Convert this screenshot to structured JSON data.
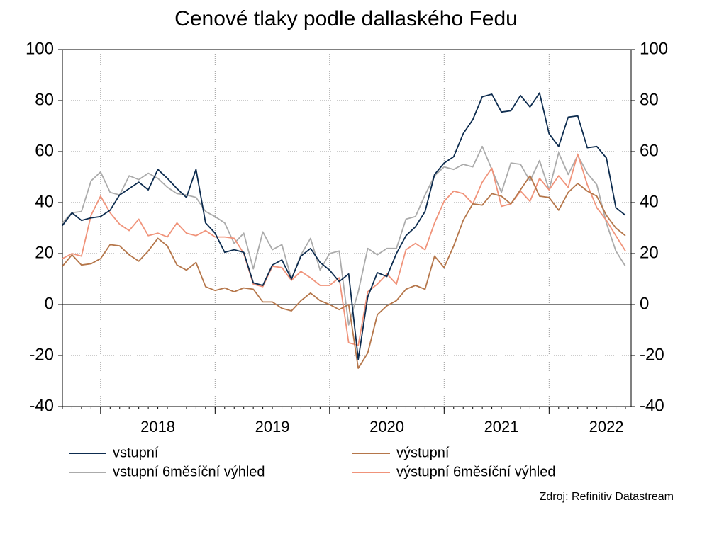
{
  "chart_data": {
    "type": "line",
    "title": "Cenové tlaky podle dallaského Fedu",
    "source": "Zdroj: Refinitiv Datastream",
    "categories": [
      null,
      null,
      null,
      null,
      null,
      null,
      null,
      null,
      null,
      null,
      "2018",
      null,
      null,
      null,
      null,
      null,
      null,
      null,
      null,
      null,
      null,
      null,
      "2019",
      null,
      null,
      null,
      null,
      null,
      null,
      null,
      null,
      null,
      null,
      null,
      "2020",
      null,
      null,
      null,
      null,
      null,
      null,
      null,
      null,
      null,
      null,
      null,
      "2021",
      null,
      null,
      null,
      null,
      null,
      null,
      null,
      null,
      null,
      null,
      "2022",
      null,
      null
    ],
    "ylim": [
      -40,
      100
    ],
    "yticks": [
      -40,
      -20,
      0,
      20,
      40,
      60,
      80,
      100
    ],
    "grid": true,
    "series": [
      {
        "name": "vstupní",
        "color": "#0d2c4f",
        "values": [
          31,
          36,
          33,
          34,
          34.5,
          37,
          43,
          45.5,
          48,
          45,
          53,
          49.5,
          45.5,
          42,
          53,
          32,
          28,
          20.5,
          21.5,
          20.5,
          8.5,
          7.5,
          15.5,
          17.5,
          10,
          19,
          22,
          16.5,
          13.5,
          9,
          12,
          -21.5,
          3,
          12.5,
          11,
          20,
          27,
          30.5,
          36.5,
          51,
          55.5,
          58,
          67,
          72.5,
          81.5,
          82.5,
          75.5,
          76,
          82,
          77.5,
          83,
          67,
          62,
          73.5,
          74,
          61.5,
          62,
          57.5,
          38,
          35
        ]
      },
      {
        "name": "výstupní",
        "color": "#b5764a",
        "values": [
          15,
          19.5,
          15.5,
          16,
          18,
          23.5,
          23,
          19.5,
          17,
          21,
          26,
          23,
          15.5,
          13.5,
          16.5,
          7,
          5.5,
          6.5,
          5,
          6.5,
          6,
          1,
          1,
          -1.5,
          -2.5,
          1.5,
          4.5,
          1.5,
          0,
          -2,
          0,
          -25,
          -19,
          -4,
          -0.5,
          1.5,
          6,
          7.5,
          6,
          19,
          14.5,
          23,
          33,
          39.5,
          39,
          43.5,
          42.5,
          39.5,
          45,
          50.5,
          42.5,
          42,
          37,
          44,
          47.5,
          44.5,
          42.5,
          35,
          30,
          27
        ]
      },
      {
        "name": "vstupní 6měsíční výhled",
        "color": "#ababab",
        "values": [
          32,
          36,
          36.5,
          48.5,
          52,
          44,
          43,
          50.5,
          49,
          51.5,
          49.5,
          46,
          43.5,
          43,
          42,
          36.5,
          34.5,
          32,
          24,
          28,
          14,
          28.5,
          21.5,
          23.5,
          10,
          19.5,
          26,
          13.5,
          20,
          21,
          -8,
          5,
          22,
          19.5,
          22,
          22,
          33.5,
          34.5,
          43,
          50.5,
          54,
          53,
          55,
          54,
          62,
          53,
          44,
          55.5,
          55,
          48.5,
          56.5,
          45,
          59.5,
          51,
          58.5,
          51.5,
          47,
          32,
          21,
          15
        ]
      },
      {
        "name": "výstupní 6měsíční výhled",
        "color": "#f0937a",
        "values": [
          18,
          20,
          19,
          35,
          42.5,
          36,
          31.5,
          29,
          33.5,
          27,
          28,
          26.5,
          32,
          28,
          27,
          29,
          26.5,
          26.5,
          26,
          20,
          8,
          7,
          15,
          14.5,
          9.5,
          13,
          10.5,
          7.5,
          7.5,
          10.5,
          -15,
          -16,
          5,
          8,
          12,
          8,
          21.5,
          24,
          21.5,
          32,
          40.5,
          44.5,
          43.5,
          39.5,
          48,
          53.5,
          38.5,
          39.5,
          44.5,
          40.5,
          49.5,
          45,
          50.5,
          46,
          59,
          47,
          38,
          33,
          27,
          21
        ]
      }
    ]
  }
}
